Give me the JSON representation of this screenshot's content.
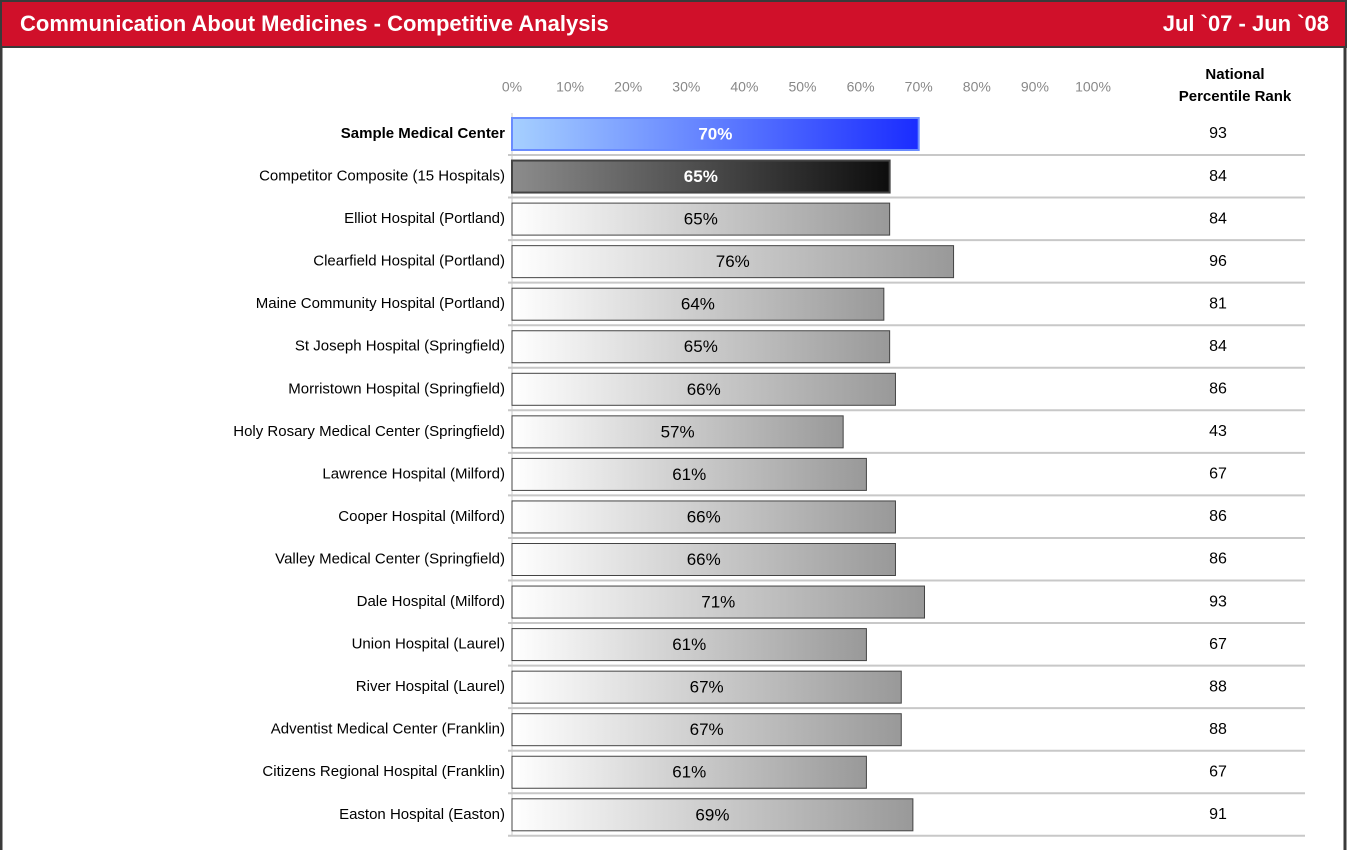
{
  "chart_data": {
    "type": "bar",
    "orientation": "horizontal",
    "title": "Communication About Medicines - Competitive Analysis",
    "period": "Jul `07 - Jun `08",
    "rank_title": "National Percentile Rank",
    "categories": [
      "Sample Medical Center",
      "Competitor Composite (15 Hospitals)",
      "Elliot Hospital (Portland)",
      "Clearfield Hospital (Portland)",
      "Maine Community Hospital (Portland)",
      "St Joseph Hospital (Springfield)",
      "Morristown Hospital (Springfield)",
      "Holy Rosary Medical Center (Springfield)",
      "Lawrence Hospital (Milford)",
      "Cooper Hospital (Milford)",
      "Valley Medical Center (Springfield)",
      "Dale Hospital (Milford)",
      "Union Hospital (Laurel)",
      "River Hospital (Laurel)",
      "Adventist Medical Center (Franklin)",
      "Citizens Regional Hospital (Franklin)",
      "Easton Hospital (Easton)"
    ],
    "values": [
      70,
      65,
      65,
      76,
      64,
      65,
      66,
      57,
      61,
      66,
      66,
      71,
      61,
      67,
      67,
      61,
      69
    ],
    "value_labels": [
      "70%",
      "65%",
      "65%",
      "76%",
      "64%",
      "65%",
      "66%",
      "57%",
      "61%",
      "66%",
      "66%",
      "71%",
      "61%",
      "67%",
      "67%",
      "61%",
      "69%"
    ],
    "ranks": [
      93,
      84,
      84,
      96,
      81,
      84,
      86,
      43,
      67,
      86,
      86,
      93,
      67,
      88,
      88,
      67,
      91
    ],
    "bold_categories": [
      0
    ],
    "colors": [
      [
        "#a6d0ff",
        "#1a2cff"
      ],
      [
        "#8c8c8c",
        "#0d0d0d"
      ],
      [
        "#ffffff",
        "#999999"
      ]
    ],
    "color_index": [
      0,
      1,
      2,
      2,
      2,
      2,
      2,
      2,
      2,
      2,
      2,
      2,
      2,
      2,
      2,
      2,
      2
    ],
    "label_colors": [
      "#ffffff",
      "#ffffff",
      "#000000"
    ],
    "xlim": [
      0,
      100
    ],
    "xticks": [
      {
        "value": 0,
        "label": "0%"
      },
      {
        "value": 10,
        "label": "10%"
      },
      {
        "value": 20,
        "label": "20%"
      },
      {
        "value": 30,
        "label": "30%"
      },
      {
        "value": 40,
        "label": "40%"
      },
      {
        "value": 50,
        "label": "50%"
      },
      {
        "value": 60,
        "label": "60%"
      },
      {
        "value": 70,
        "label": "70%"
      },
      {
        "value": 80,
        "label": "80%"
      },
      {
        "value": 90,
        "label": "90%"
      },
      {
        "value": 100,
        "label": "100%"
      }
    ]
  }
}
